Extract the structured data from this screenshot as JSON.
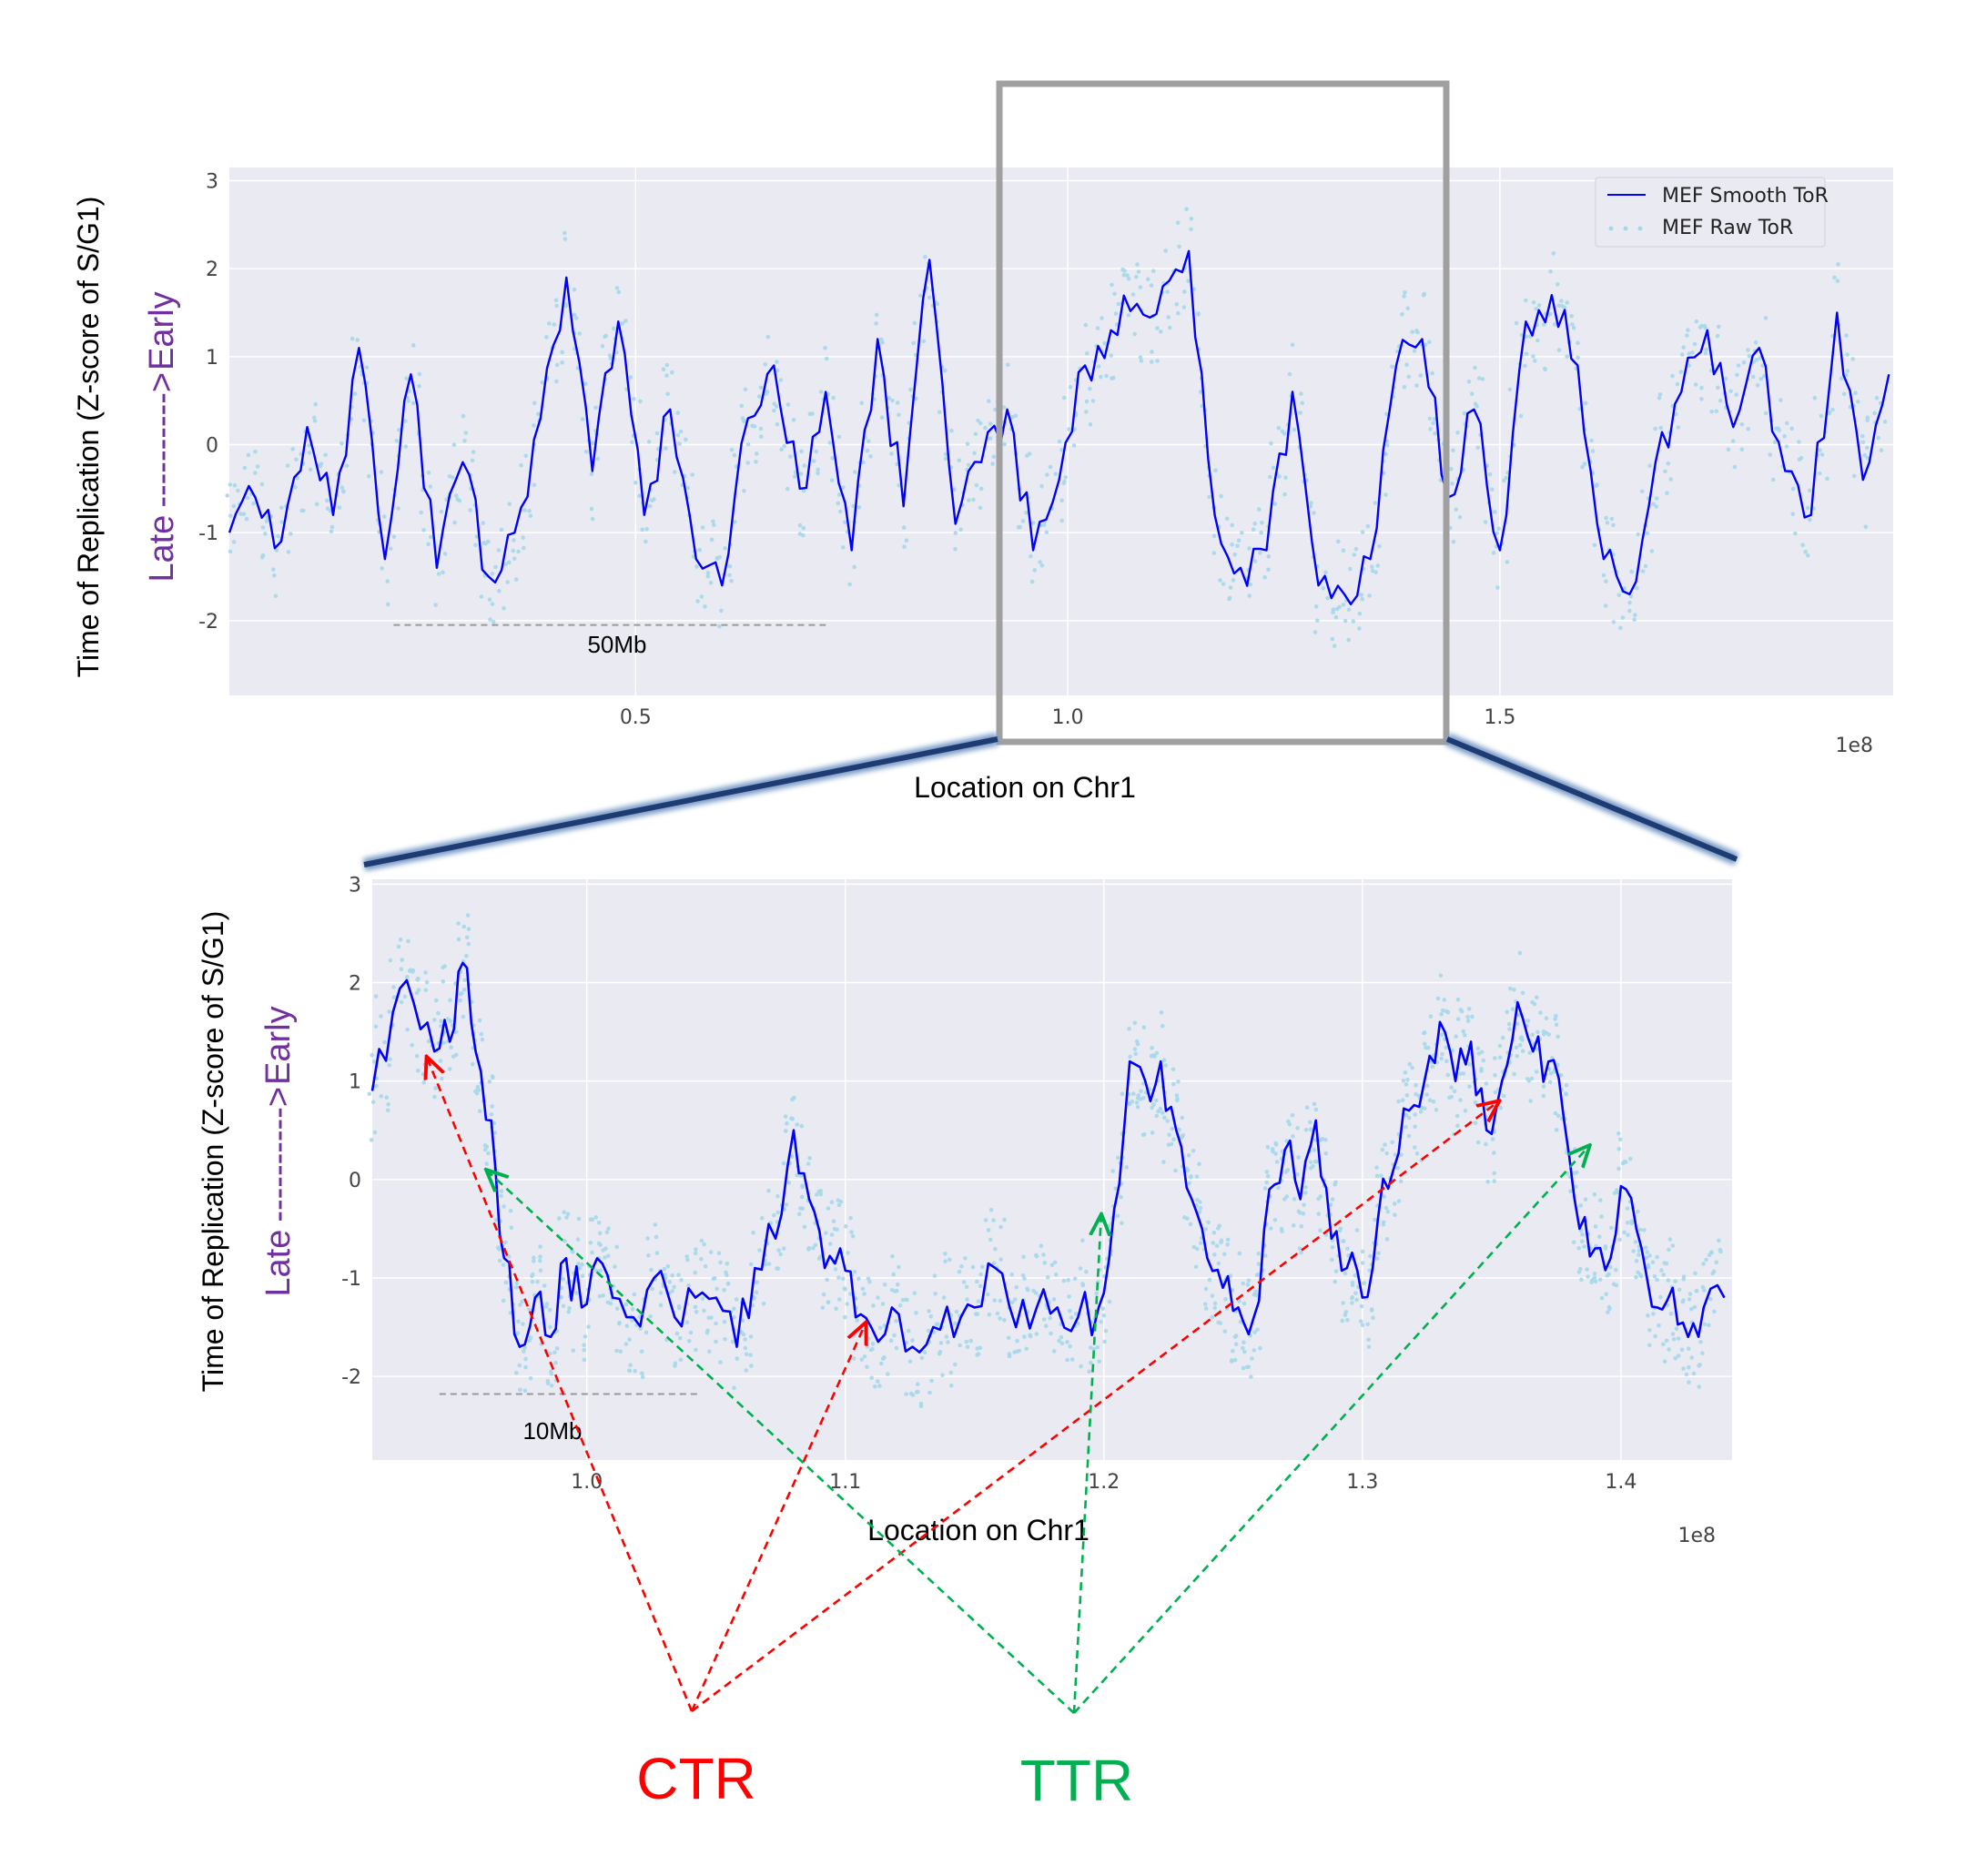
{
  "colors": {
    "smooth": "#0000ff",
    "raw": "#a6d8ea",
    "panel_bg": "#eaeaf2",
    "grid": "#ffffff",
    "late_early": "#7030a0",
    "ctr": "#ff0000",
    "ttr": "#00b050",
    "zoom_box": "#a0a0a0",
    "connector": "#1f3b73"
  },
  "chart_data": [
    {
      "type": "line",
      "panel": "full-chromosome",
      "xlabel": "Location on Chr1",
      "ylabel_main": "Time of Replication (Z-score of S/G1)",
      "ylabel_late": "Late",
      "ylabel_arrow": "---------->",
      "ylabel_early": "Early",
      "x_offset_label": "1e8",
      "xlim": [
        3000000,
        195500000
      ],
      "ylim": [
        -2.85,
        3.15
      ],
      "x_ticks": [
        50000000,
        100000000,
        150000000
      ],
      "x_tick_labels": [
        "0.5",
        "1.0",
        "1.5"
      ],
      "y_ticks": [
        -2,
        -1,
        0,
        1,
        2,
        3
      ],
      "y_tick_labels": [
        "-2",
        "-1",
        "0",
        "1",
        "2",
        "3"
      ],
      "grid": true,
      "legend_position": "top-right",
      "scale_bar": {
        "label": "50Mb",
        "x_start": 22000000,
        "x_end": 72000000,
        "y": -2.05
      },
      "series": [
        {
          "name": "MEF Smooth ToR",
          "style": "line",
          "x": [
            3000000,
            6000000,
            9000000,
            12000000,
            15000000,
            18000000,
            21000000,
            24000000,
            27000000,
            30000000,
            33000000,
            36000000,
            39000000,
            42000000,
            45000000,
            48000000,
            51000000,
            54000000,
            57000000,
            60000000,
            63000000,
            66000000,
            69000000,
            72000000,
            75000000,
            78000000,
            81000000,
            84000000,
            87000000,
            90000000,
            93000000,
            96000000,
            99000000,
            102000000,
            105000000,
            108000000,
            111000000,
            114000000,
            117000000,
            120000000,
            123000000,
            126000000,
            129000000,
            132000000,
            135000000,
            138000000,
            141000000,
            144000000,
            147000000,
            150000000,
            153000000,
            156000000,
            159000000,
            162000000,
            165000000,
            168000000,
            171000000,
            174000000,
            177000000,
            180000000,
            183000000,
            186000000,
            189000000,
            192000000,
            195000000
          ],
          "values": [
            -1.0,
            -0.6,
            -1.1,
            0.2,
            -0.8,
            1.1,
            -1.3,
            0.8,
            -1.4,
            -0.2,
            -1.5,
            -1.0,
            0.3,
            1.9,
            -0.3,
            1.4,
            -0.8,
            0.4,
            -1.3,
            -1.6,
            0.3,
            0.9,
            -0.5,
            0.6,
            -1.2,
            1.2,
            -0.7,
            2.1,
            -0.9,
            -0.2,
            0.4,
            -1.2,
            -0.4,
            0.9,
            1.3,
            1.6,
            1.8,
            2.2,
            -0.8,
            -1.4,
            -1.2,
            0.6,
            -1.6,
            -1.7,
            -1.3,
            0.9,
            1.2,
            -0.6,
            0.4,
            -1.2,
            1.4,
            1.7,
            0.9,
            -1.3,
            -1.7,
            -0.2,
            0.6,
            1.3,
            0.2,
            1.1,
            -0.3,
            -0.8,
            1.5,
            -0.4,
            0.8
          ],
          "pointer": "full"
        },
        {
          "name": "MEF Raw ToR",
          "style": "scatter"
        }
      ]
    },
    {
      "type": "line",
      "panel": "zoom",
      "xlabel": "Location on Chr1",
      "ylabel_main": "Time of Replication (Z-score of S/G1)",
      "ylabel_late": "Late",
      "ylabel_arrow": "---------->",
      "ylabel_early": "Early",
      "x_offset_label": "1e8",
      "xlim": [
        91700000,
        144300000
      ],
      "ylim": [
        -2.85,
        3.05
      ],
      "x_ticks": [
        100000000,
        110000000,
        120000000,
        130000000,
        140000000
      ],
      "x_tick_labels": [
        "1.0",
        "1.1",
        "1.2",
        "1.3",
        "1.4"
      ],
      "y_ticks": [
        -2,
        -1,
        0,
        1,
        2,
        3
      ],
      "y_tick_labels": [
        "-2",
        "-1",
        "0",
        "1",
        "2",
        "3"
      ],
      "grid": true,
      "scale_bar": {
        "label": "10Mb",
        "x_start": 94300000,
        "x_end": 104300000,
        "y": -2.18
      },
      "series": [
        {
          "name": "MEF Smooth ToR",
          "style": "line",
          "x": [
            91700000,
            92500000,
            93300000,
            94100000,
            94700000,
            95200000,
            95700000,
            96300000,
            96800000,
            97400000,
            98000000,
            98600000,
            99200000,
            99800000,
            100400000,
            101000000,
            101800000,
            102600000,
            103400000,
            104200000,
            105000000,
            105800000,
            106500000,
            107300000,
            108000000,
            108600000,
            109200000,
            109800000,
            110400000,
            111000000,
            111800000,
            112600000,
            113400000,
            114200000,
            115000000,
            115800000,
            116600000,
            117400000,
            118200000,
            119000000,
            119800000,
            120400000,
            121000000,
            121600000,
            122200000,
            122800000,
            123400000,
            124000000,
            124600000,
            125200000,
            125800000,
            126400000,
            127000000,
            127600000,
            128200000,
            128800000,
            129400000,
            130000000,
            130600000,
            131200000,
            131800000,
            132400000,
            133000000,
            133600000,
            134200000,
            134800000,
            135400000,
            136000000,
            136600000,
            137200000,
            137800000,
            138400000,
            139000000,
            139600000,
            140200000,
            140800000,
            141400000,
            142000000,
            142600000,
            143200000,
            144000000
          ],
          "values": [
            0.9,
            1.7,
            1.8,
            1.3,
            1.4,
            2.2,
            1.3,
            0.6,
            -0.8,
            -1.7,
            -1.2,
            -1.6,
            -0.8,
            -1.3,
            -0.8,
            -1.2,
            -1.4,
            -1.0,
            -1.4,
            -1.2,
            -1.2,
            -1.7,
            -0.9,
            -0.6,
            0.5,
            -0.2,
            -0.9,
            -0.7,
            -1.4,
            -1.5,
            -1.3,
            -1.7,
            -1.5,
            -1.6,
            -1.3,
            -0.9,
            -1.5,
            -1.3,
            -1.3,
            -1.4,
            -1.3,
            -0.3,
            1.2,
            1.0,
            1.2,
            0.5,
            -0.2,
            -0.8,
            -1.1,
            -1.3,
            -1.4,
            -0.1,
            0.3,
            -0.2,
            0.6,
            -0.6,
            -0.9,
            -1.2,
            -0.4,
            0.1,
            0.7,
            1.0,
            1.6,
            1.0,
            1.4,
            0.5,
            1.0,
            1.8,
            1.3,
            1.2,
            0.6,
            -0.5,
            -0.7,
            -0.8,
            -0.1,
            -0.7,
            -1.3,
            -1.1,
            -1.6,
            -1.3,
            -1.2
          ],
          "pointer": "zoom"
        },
        {
          "name": "MEF Raw ToR",
          "style": "scatter"
        }
      ],
      "annotations": [
        {
          "label": "CTR",
          "color": "#ff0000",
          "targets": [
            [
              93800000,
              1.25
            ],
            [
              110800000,
              -1.45
            ],
            [
              135300000,
              0.8
            ]
          ]
        },
        {
          "label": "TTR",
          "color": "#00b050",
          "targets": [
            [
              96100000,
              0.1
            ],
            [
              119900000,
              -0.35
            ],
            [
              138800000,
              0.35
            ]
          ]
        }
      ]
    }
  ]
}
